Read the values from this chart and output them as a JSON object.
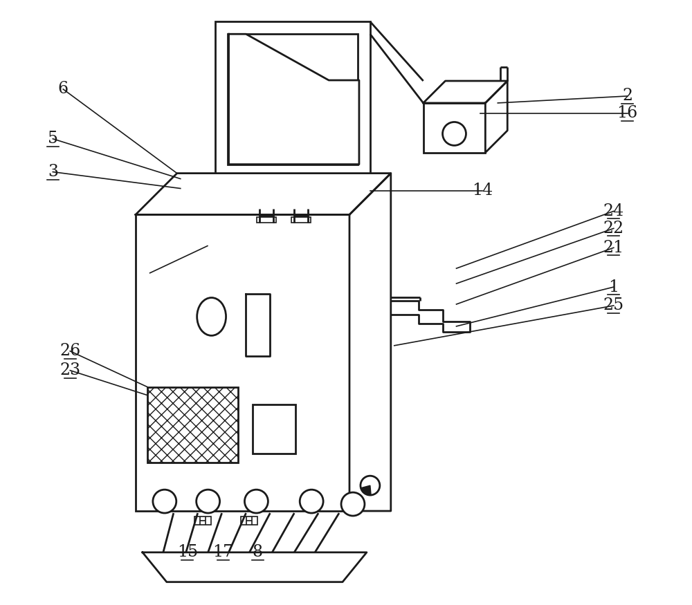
{
  "bg_color": "#ffffff",
  "line_color": "#1a1a1a",
  "lw_main": 2.0,
  "lw_thin": 1.2,
  "label_fontsize": 17,
  "fig_w": 10.0,
  "fig_h": 8.75,
  "dpi": 100
}
